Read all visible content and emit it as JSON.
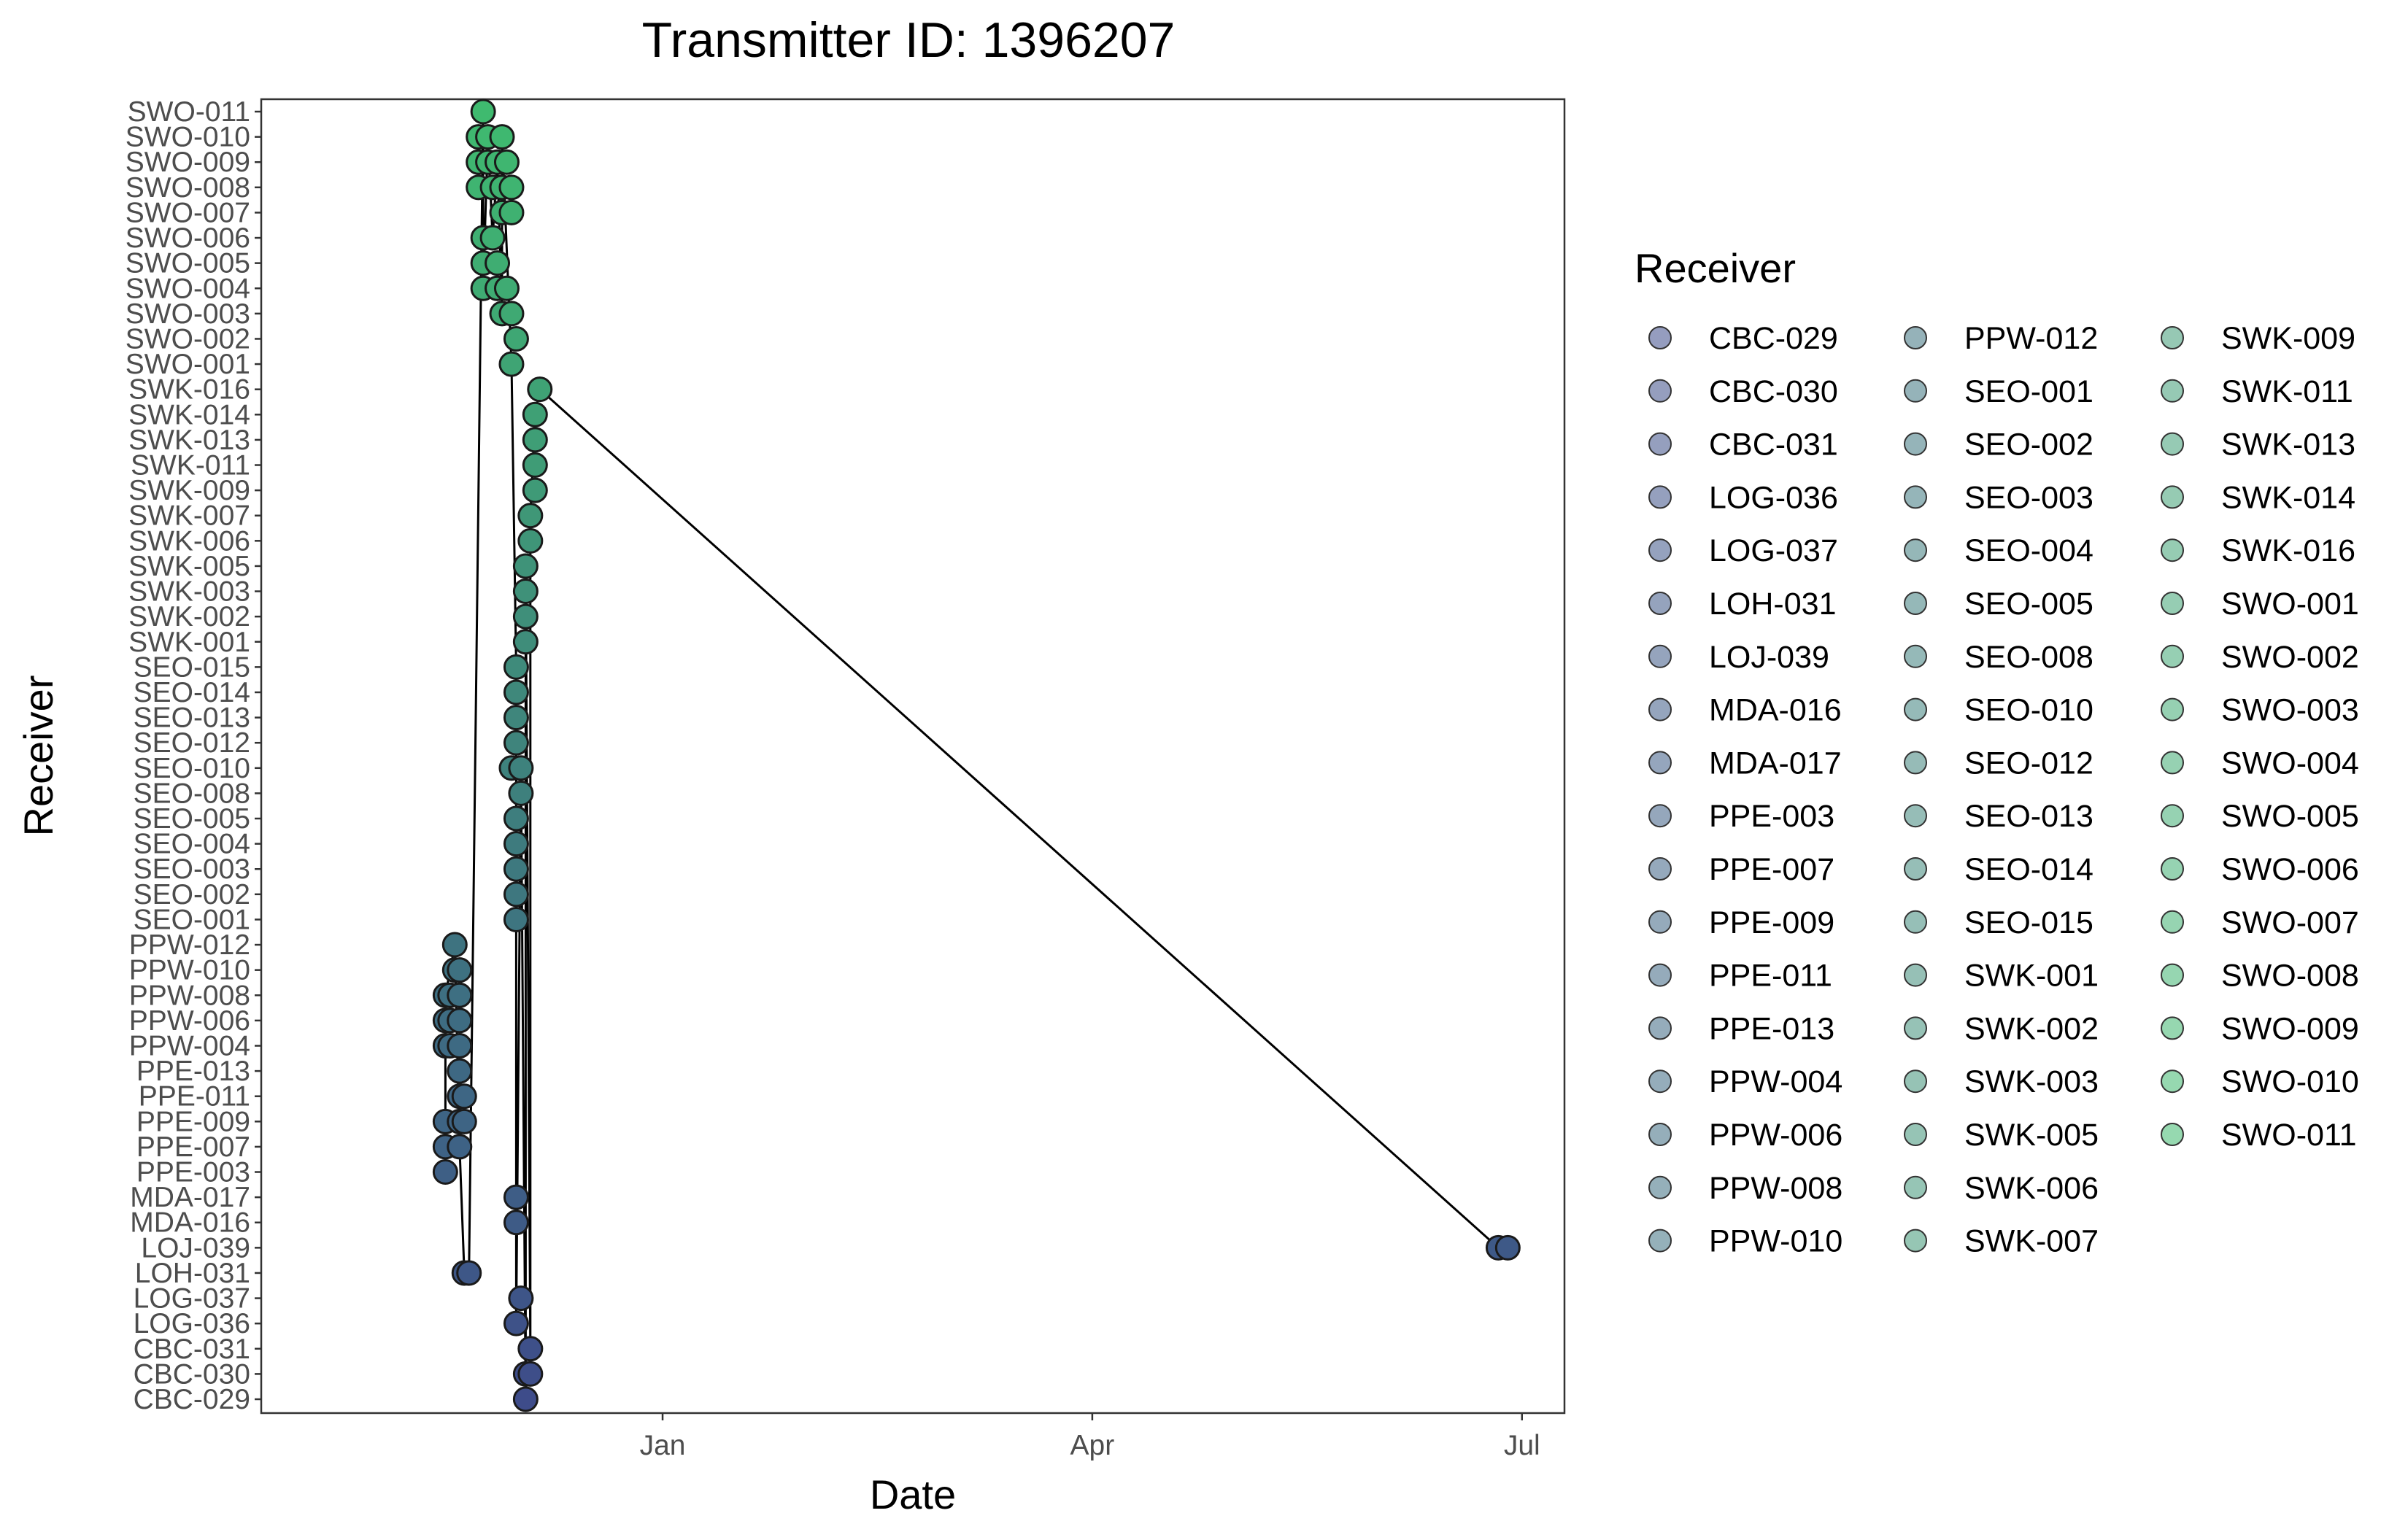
{
  "chart_data": {
    "type": "scatter",
    "title": "Transmitter ID: 1396207",
    "xlabel": "Date",
    "ylabel": "Receiver",
    "x_range": [
      "2023-10-08",
      "2024-07-10"
    ],
    "x_ticks": [
      {
        "label": "Jan",
        "date": "2024-01-01"
      },
      {
        "label": "Apr",
        "date": "2024-04-01"
      },
      {
        "label": "Jul",
        "date": "2024-07-01"
      }
    ],
    "categories": [
      "CBC-029",
      "CBC-030",
      "CBC-031",
      "LOG-036",
      "LOG-037",
      "LOH-031",
      "LOJ-039",
      "MDA-016",
      "MDA-017",
      "PPE-003",
      "PPE-007",
      "PPE-009",
      "PPE-011",
      "PPE-013",
      "PPW-004",
      "PPW-006",
      "PPW-008",
      "PPW-010",
      "PPW-012",
      "SEO-001",
      "SEO-002",
      "SEO-003",
      "SEO-004",
      "SEO-005",
      "SEO-008",
      "SEO-010",
      "SEO-012",
      "SEO-013",
      "SEO-014",
      "SEO-015",
      "SWK-001",
      "SWK-002",
      "SWK-003",
      "SWK-005",
      "SWK-006",
      "SWK-007",
      "SWK-009",
      "SWK-011",
      "SWK-013",
      "SWK-014",
      "SWK-016",
      "SWO-001",
      "SWO-002",
      "SWO-003",
      "SWO-004",
      "SWO-005",
      "SWO-006",
      "SWO-007",
      "SWO-008",
      "SWO-009",
      "SWO-010",
      "SWO-011"
    ],
    "legend_title": "Receiver",
    "legend_position": "right",
    "grid": false,
    "colors": {
      "start": "#3e4c8a",
      "end": "#3fba6f",
      "line": "#000000",
      "marker_stroke": "#1a1a1a",
      "axis": "#333333"
    },
    "points": [
      {
        "x": "2023-11-16",
        "y": "PPE-003"
      },
      {
        "x": "2023-11-16",
        "y": "PPE-007"
      },
      {
        "x": "2023-11-16",
        "y": "PPE-009"
      },
      {
        "x": "2023-11-16",
        "y": "PPW-004"
      },
      {
        "x": "2023-11-16",
        "y": "PPW-006"
      },
      {
        "x": "2023-11-16",
        "y": "PPW-008"
      },
      {
        "x": "2023-11-17",
        "y": "PPW-004"
      },
      {
        "x": "2023-11-17",
        "y": "PPW-006"
      },
      {
        "x": "2023-11-17",
        "y": "PPW-008"
      },
      {
        "x": "2023-11-18",
        "y": "PPW-010"
      },
      {
        "x": "2023-11-18",
        "y": "PPW-012"
      },
      {
        "x": "2023-11-19",
        "y": "PPW-010"
      },
      {
        "x": "2023-11-19",
        "y": "PPW-008"
      },
      {
        "x": "2023-11-19",
        "y": "PPW-006"
      },
      {
        "x": "2023-11-19",
        "y": "PPW-004"
      },
      {
        "x": "2023-11-19",
        "y": "PPE-013"
      },
      {
        "x": "2023-11-19",
        "y": "PPE-011"
      },
      {
        "x": "2023-11-19",
        "y": "PPE-009"
      },
      {
        "x": "2023-11-19",
        "y": "PPE-007"
      },
      {
        "x": "2023-11-20",
        "y": "LOH-031"
      },
      {
        "x": "2023-11-20",
        "y": "PPE-011"
      },
      {
        "x": "2023-11-20",
        "y": "PPE-009"
      },
      {
        "x": "2023-11-21",
        "y": "LOH-031"
      },
      {
        "x": "2023-11-23",
        "y": "SWO-008"
      },
      {
        "x": "2023-11-23",
        "y": "SWO-009"
      },
      {
        "x": "2023-11-23",
        "y": "SWO-010"
      },
      {
        "x": "2023-11-24",
        "y": "SWO-011"
      },
      {
        "x": "2023-11-24",
        "y": "SWO-006"
      },
      {
        "x": "2023-11-24",
        "y": "SWO-005"
      },
      {
        "x": "2023-11-24",
        "y": "SWO-004"
      },
      {
        "x": "2023-11-25",
        "y": "SWO-009"
      },
      {
        "x": "2023-11-25",
        "y": "SWO-010"
      },
      {
        "x": "2023-11-26",
        "y": "SWO-008"
      },
      {
        "x": "2023-11-26",
        "y": "SWO-006"
      },
      {
        "x": "2023-11-27",
        "y": "SWO-009"
      },
      {
        "x": "2023-11-27",
        "y": "SWO-005"
      },
      {
        "x": "2023-11-27",
        "y": "SWO-004"
      },
      {
        "x": "2023-11-28",
        "y": "SWO-007"
      },
      {
        "x": "2023-11-28",
        "y": "SWO-008"
      },
      {
        "x": "2023-11-28",
        "y": "SWO-010"
      },
      {
        "x": "2023-11-28",
        "y": "SWO-003"
      },
      {
        "x": "2023-11-29",
        "y": "SWO-009"
      },
      {
        "x": "2023-11-29",
        "y": "SWO-004"
      },
      {
        "x": "2023-11-30",
        "y": "SWO-008"
      },
      {
        "x": "2023-11-30",
        "y": "SWO-007"
      },
      {
        "x": "2023-11-30",
        "y": "SWO-003"
      },
      {
        "x": "2023-11-30",
        "y": "SWO-001"
      },
      {
        "x": "2023-11-30",
        "y": "SEO-010"
      },
      {
        "x": "2023-12-01",
        "y": "SWO-002"
      },
      {
        "x": "2023-12-01",
        "y": "SEO-001"
      },
      {
        "x": "2023-12-01",
        "y": "SEO-002"
      },
      {
        "x": "2023-12-01",
        "y": "SEO-003"
      },
      {
        "x": "2023-12-01",
        "y": "SEO-004"
      },
      {
        "x": "2023-12-01",
        "y": "SEO-005"
      },
      {
        "x": "2023-12-01",
        "y": "SEO-012"
      },
      {
        "x": "2023-12-01",
        "y": "SEO-013"
      },
      {
        "x": "2023-12-01",
        "y": "SEO-014"
      },
      {
        "x": "2023-12-01",
        "y": "SEO-015"
      },
      {
        "x": "2023-12-01",
        "y": "MDA-017"
      },
      {
        "x": "2023-12-01",
        "y": "MDA-016"
      },
      {
        "x": "2023-12-01",
        "y": "LOG-036"
      },
      {
        "x": "2023-12-02",
        "y": "LOG-037"
      },
      {
        "x": "2023-12-02",
        "y": "SEO-008"
      },
      {
        "x": "2023-12-02",
        "y": "SEO-010"
      },
      {
        "x": "2023-12-03",
        "y": "SWK-001"
      },
      {
        "x": "2023-12-03",
        "y": "SWK-002"
      },
      {
        "x": "2023-12-03",
        "y": "SWK-003"
      },
      {
        "x": "2023-12-03",
        "y": "SWK-005"
      },
      {
        "x": "2023-12-03",
        "y": "CBC-029"
      },
      {
        "x": "2023-12-03",
        "y": "CBC-030"
      },
      {
        "x": "2023-12-04",
        "y": "SWK-006"
      },
      {
        "x": "2023-12-04",
        "y": "SWK-007"
      },
      {
        "x": "2023-12-04",
        "y": "CBC-031"
      },
      {
        "x": "2023-12-04",
        "y": "CBC-030"
      },
      {
        "x": "2023-12-05",
        "y": "SWK-009"
      },
      {
        "x": "2023-12-05",
        "y": "SWK-011"
      },
      {
        "x": "2023-12-05",
        "y": "SWK-013"
      },
      {
        "x": "2023-12-05",
        "y": "SWK-014"
      },
      {
        "x": "2023-12-06",
        "y": "SWK-016"
      },
      {
        "x": "2024-06-26",
        "y": "LOJ-039"
      },
      {
        "x": "2024-06-28",
        "y": "LOJ-039"
      }
    ],
    "path": [
      {
        "x": "2023-11-16",
        "y": "PPE-003"
      },
      {
        "x": "2023-11-16",
        "y": "PPW-008"
      },
      {
        "x": "2023-11-18",
        "y": "PPW-012"
      },
      {
        "x": "2023-11-19",
        "y": "PPE-007"
      },
      {
        "x": "2023-11-20",
        "y": "LOH-031"
      },
      {
        "x": "2023-11-21",
        "y": "LOH-031"
      },
      {
        "x": "2023-11-24",
        "y": "SWO-011"
      },
      {
        "x": "2023-11-24",
        "y": "SWO-004"
      },
      {
        "x": "2023-11-25",
        "y": "SWO-010"
      },
      {
        "x": "2023-11-26",
        "y": "SWO-006"
      },
      {
        "x": "2023-11-27",
        "y": "SWO-009"
      },
      {
        "x": "2023-11-28",
        "y": "SWO-003"
      },
      {
        "x": "2023-11-28",
        "y": "SWO-010"
      },
      {
        "x": "2023-11-30",
        "y": "SWO-001"
      },
      {
        "x": "2023-12-01",
        "y": "SEO-015"
      },
      {
        "x": "2023-12-01",
        "y": "LOG-036"
      },
      {
        "x": "2023-12-02",
        "y": "SEO-010"
      },
      {
        "x": "2023-12-03",
        "y": "CBC-029"
      },
      {
        "x": "2023-12-03",
        "y": "SWK-005"
      },
      {
        "x": "2023-12-04",
        "y": "CBC-031"
      },
      {
        "x": "2023-12-04",
        "y": "SWK-007"
      },
      {
        "x": "2023-12-05",
        "y": "SWK-014"
      },
      {
        "x": "2023-12-06",
        "y": "SWK-016"
      },
      {
        "x": "2024-06-26",
        "y": "LOJ-039"
      },
      {
        "x": "2024-06-28",
        "y": "LOJ-039"
      }
    ]
  }
}
